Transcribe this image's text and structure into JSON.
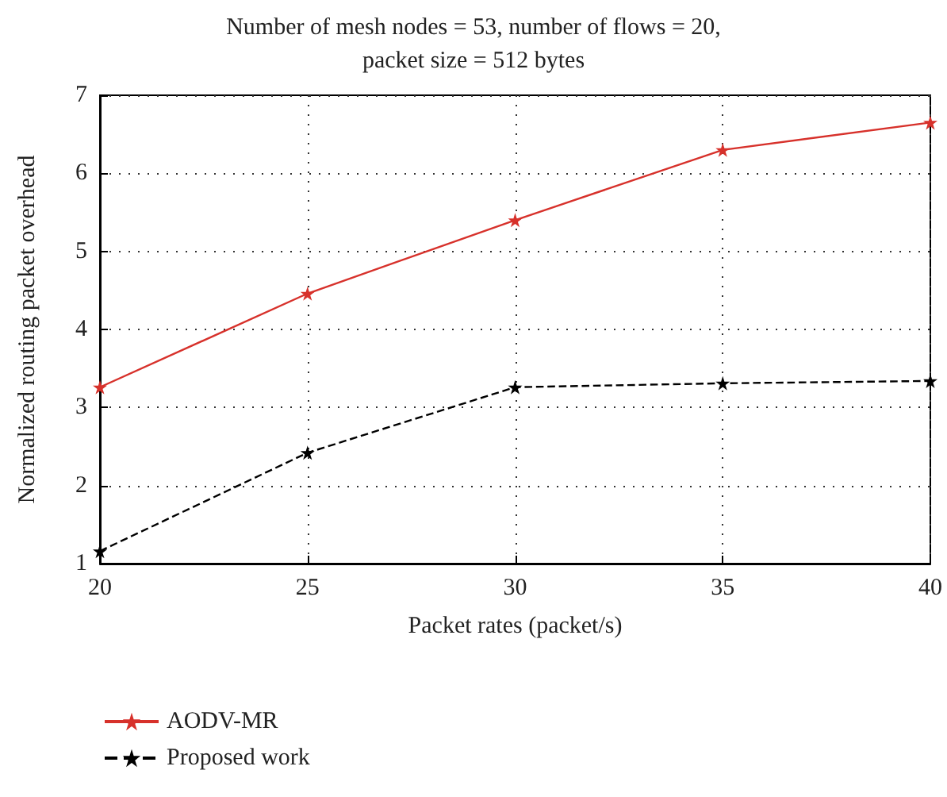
{
  "chart_data": {
    "type": "line",
    "title": "Number of mesh nodes = 53, number of flows = 20,\npacket size = 512 bytes",
    "xlabel": "Packet rates (packet/s)",
    "ylabel": "Normalized routing packet overhead",
    "x": [
      20,
      25,
      30,
      35,
      40
    ],
    "series": [
      {
        "name": "AODV-MR",
        "color": "#d7312b",
        "values": [
          3.26,
          4.46,
          5.4,
          6.3,
          6.65
        ],
        "line_style": "solid"
      },
      {
        "name": "Proposed work",
        "color": "#000000",
        "values": [
          1.16,
          2.42,
          3.26,
          3.31,
          3.34
        ],
        "line_style": "dashed"
      }
    ],
    "xlim": [
      20,
      40
    ],
    "xticks": [
      20,
      25,
      30,
      35,
      40
    ],
    "ylim": [
      1,
      7
    ],
    "yticks": [
      1,
      2,
      3,
      4,
      5,
      6,
      7
    ],
    "grid": true,
    "legend": "bottom left",
    "marker": "star"
  }
}
